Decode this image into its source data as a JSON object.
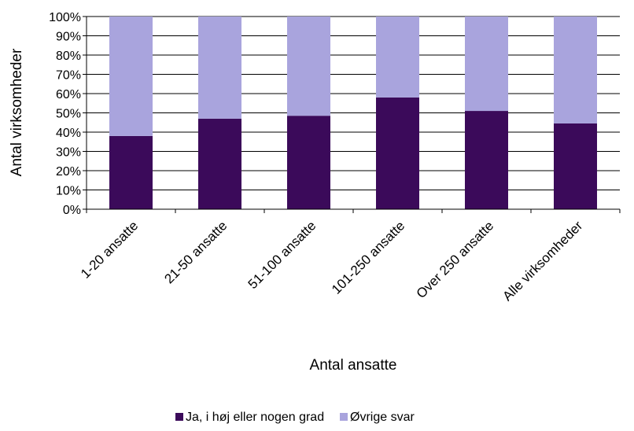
{
  "chart_data": {
    "type": "bar",
    "stacked": true,
    "categories": [
      "1-20 ansatte",
      "21-50 ansatte",
      "51-100 ansatte",
      "101-250 ansatte",
      "Over 250 ansatte",
      "Alle virksomheder"
    ],
    "series": [
      {
        "name": "Ja, i høj eller nogen grad",
        "values": [
          38,
          47,
          48.5,
          58,
          51,
          44.5
        ],
        "color": "#3b0a5a"
      },
      {
        "name": "Øvrige svar",
        "values": [
          62,
          53,
          51.5,
          42,
          49,
          55.5
        ],
        "color": "#a9a4dd"
      }
    ],
    "xlabel": "Antal ansatte",
    "ylabel": "Antal virksomheder",
    "ylim": [
      0,
      100
    ],
    "yticks": [
      "0%",
      "10%",
      "20%",
      "30%",
      "40%",
      "50%",
      "60%",
      "70%",
      "80%",
      "90%",
      "100%"
    ],
    "grid": true,
    "legend_position": "bottom"
  }
}
